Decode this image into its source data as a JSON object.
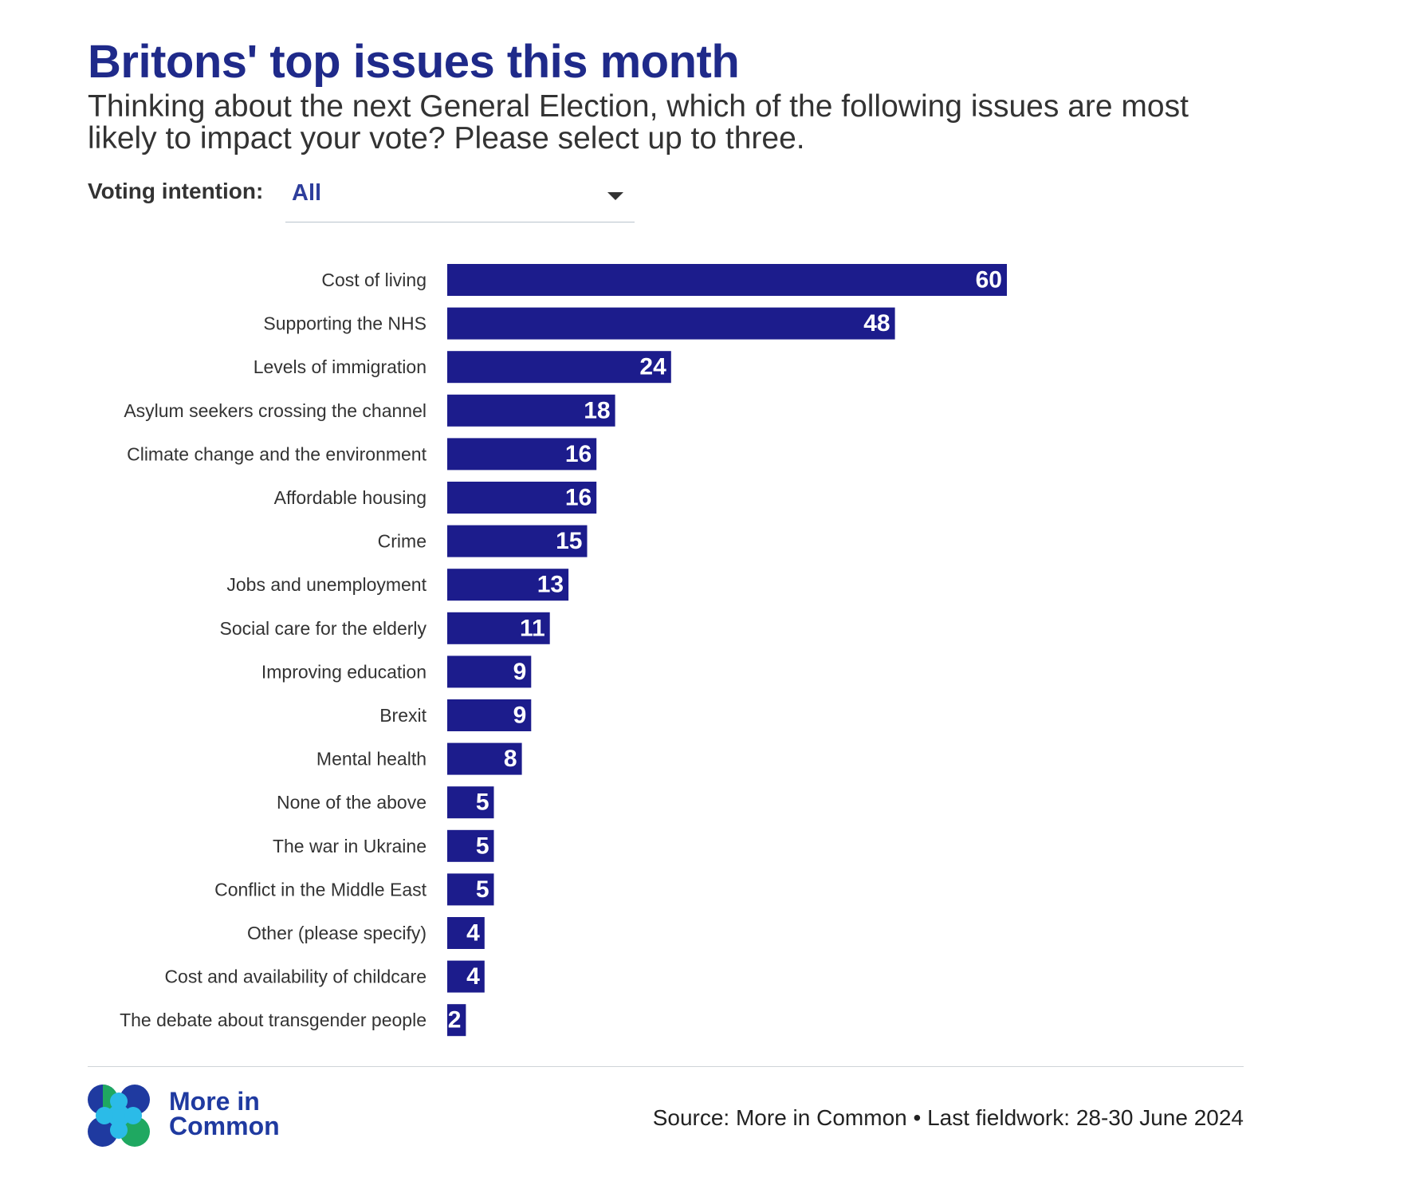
{
  "header": {
    "title": "Britons' top issues this month",
    "subtitle": "Thinking about the next General Election, which of the following issues are most likely to impact your vote? Please select up to three."
  },
  "filter": {
    "label": "Voting intention:",
    "selected": "All"
  },
  "colors": {
    "bar": "#1c1c8c",
    "bar_label": "#ffffff",
    "category_label": "#333333",
    "title": "#1f2a8a"
  },
  "chart_data": {
    "type": "bar",
    "orientation": "horizontal",
    "categories": [
      "Cost of living",
      "Supporting the NHS",
      "Levels of immigration",
      "Asylum seekers crossing the channel",
      "Climate change and the environment",
      "Affordable housing",
      "Crime",
      "Jobs and unemployment",
      "Social care for the elderly",
      "Improving education",
      "Brexit",
      "Mental health",
      "None of the above",
      "The war in Ukraine",
      "Conflict in the Middle East",
      "Other (please specify)",
      "Cost and availability of childcare",
      "The debate about transgender people"
    ],
    "values": [
      60,
      48,
      24,
      18,
      16,
      16,
      15,
      13,
      11,
      9,
      9,
      8,
      5,
      5,
      5,
      4,
      4,
      2
    ],
    "xlim": [
      0,
      100
    ],
    "data_labels": true,
    "grid": false
  },
  "footer": {
    "logo_line1": "More in",
    "logo_line2": "Common",
    "source": "Source: More in Common • Last fieldwork: 28-30 June 2024"
  }
}
